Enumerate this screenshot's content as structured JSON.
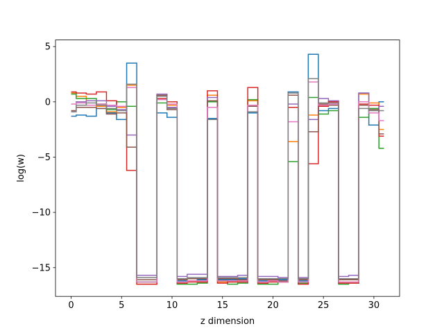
{
  "chart_data": {
    "type": "line",
    "drawstyle": "steps-mid",
    "title": "",
    "xlabel": "z dimension",
    "ylabel": "log(w)",
    "xlim": [
      -1.55,
      32.55
    ],
    "ylim": [
      -17.6,
      5.6
    ],
    "xticks": [
      0,
      5,
      10,
      15,
      20,
      25,
      30
    ],
    "yticks": [
      5,
      0,
      -5,
      -10,
      -15
    ],
    "ytick_labels": [
      "5",
      "0",
      "−5",
      "−10",
      "−15"
    ],
    "grid": false,
    "legend": "none",
    "x": [
      0,
      1,
      2,
      3,
      4,
      5,
      6,
      7,
      8,
      9,
      10,
      11,
      12,
      13,
      14,
      15,
      16,
      17,
      18,
      19,
      20,
      21,
      22,
      23,
      24,
      25,
      26,
      27,
      28,
      29,
      30,
      31
    ],
    "series": [
      {
        "color": "#1f77b4",
        "values": [
          -1.3,
          -1.2,
          -1.3,
          -0.6,
          -1.0,
          -1.6,
          3.5,
          -16.3,
          -16.3,
          -1.0,
          -1.4,
          -16.2,
          -16.0,
          -16.1,
          -1.5,
          -16.1,
          -16.1,
          -16.0,
          -1.0,
          -16.2,
          -16.0,
          -16.1,
          0.9,
          -16.2,
          4.3,
          -0.8,
          -0.6,
          -16.1,
          -16.1,
          0.8,
          -2.1,
          0.0
        ]
      },
      {
        "color": "#ff7f0e",
        "values": [
          0.8,
          0.5,
          0.1,
          -0.4,
          -0.9,
          -0.5,
          1.5,
          -16.5,
          -16.5,
          0.6,
          -0.3,
          -16.4,
          -16.2,
          -16.3,
          0.6,
          -16.3,
          -16.3,
          -16.2,
          0.1,
          -16.4,
          -16.2,
          -16.3,
          -3.6,
          -16.4,
          -1.2,
          -0.3,
          0.1,
          -16.3,
          -16.3,
          0.7,
          -0.1,
          -2.5
        ]
      },
      {
        "color": "#2ca02c",
        "values": [
          0.7,
          0.3,
          0.3,
          -0.2,
          -0.7,
          0.0,
          -0.4,
          -16.3,
          -16.3,
          -0.1,
          -0.5,
          -16.5,
          -16.5,
          -16.4,
          0.0,
          -16.2,
          -16.5,
          -16.4,
          0.2,
          -16.5,
          -16.5,
          -16.3,
          -5.4,
          -16.4,
          0.4,
          -1.1,
          -0.8,
          -16.5,
          -16.4,
          -1.4,
          -0.6,
          -4.2
        ]
      },
      {
        "color": "#d62728",
        "values": [
          0.9,
          0.8,
          0.7,
          0.9,
          0.1,
          -0.4,
          -6.2,
          -16.5,
          -16.5,
          0.3,
          0.0,
          -16.4,
          -16.3,
          -16.3,
          1.0,
          -16.4,
          -16.3,
          -16.3,
          1.3,
          -16.4,
          -16.3,
          -16.3,
          -0.5,
          -16.5,
          -5.6,
          -0.4,
          0.0,
          -16.4,
          -16.4,
          -0.2,
          -0.3,
          -3.1
        ]
      },
      {
        "color": "#9467bd",
        "values": [
          -0.9,
          0.0,
          0.1,
          0.1,
          -0.4,
          -0.7,
          -3.0,
          -15.7,
          -15.7,
          0.7,
          -0.5,
          -15.8,
          -15.6,
          -15.6,
          0.4,
          -15.8,
          -15.8,
          -15.7,
          -0.4,
          -15.8,
          -15.8,
          -15.9,
          -0.2,
          -15.9,
          -1.6,
          0.3,
          0.1,
          -15.8,
          -15.7,
          0.8,
          -1.0,
          -0.4
        ]
      },
      {
        "color": "#8c564b",
        "values": [
          -0.8,
          -0.5,
          -0.5,
          -0.6,
          -1.1,
          -1.0,
          -4.1,
          -16.1,
          -16.1,
          0.6,
          -0.7,
          -16.1,
          -16.0,
          -16.0,
          0.1,
          -16.0,
          -16.0,
          -16.1,
          -0.4,
          -16.1,
          -16.1,
          -16.2,
          0.6,
          -16.1,
          -2.7,
          -0.2,
          -0.3,
          -16.1,
          -16.1,
          -0.3,
          -0.7,
          -2.9
        ]
      },
      {
        "color": "#e377c2",
        "values": [
          -0.2,
          -0.1,
          -0.3,
          -0.2,
          -0.3,
          -0.4,
          1.3,
          -16.3,
          -16.3,
          0.2,
          -0.2,
          -16.3,
          -16.2,
          -16.2,
          -0.5,
          -16.2,
          -16.2,
          -16.2,
          -0.3,
          -16.3,
          -16.2,
          -16.3,
          -1.8,
          -16.3,
          1.8,
          -0.3,
          -0.2,
          -16.3,
          -16.3,
          0.0,
          -1.0,
          -1.7
        ]
      },
      {
        "color": "#7f7f7f",
        "values": [
          -0.9,
          -0.3,
          -0.1,
          -0.3,
          -0.6,
          -0.8,
          1.6,
          -15.9,
          -15.9,
          0.5,
          -0.6,
          -16.0,
          -15.9,
          -15.9,
          -1.6,
          -15.9,
          -15.9,
          -15.9,
          -0.9,
          -16.0,
          -16.0,
          -16.0,
          0.8,
          -16.0,
          2.1,
          -0.1,
          -0.1,
          -16.0,
          -16.0,
          -0.6,
          -0.8,
          -0.8
        ]
      }
    ]
  }
}
